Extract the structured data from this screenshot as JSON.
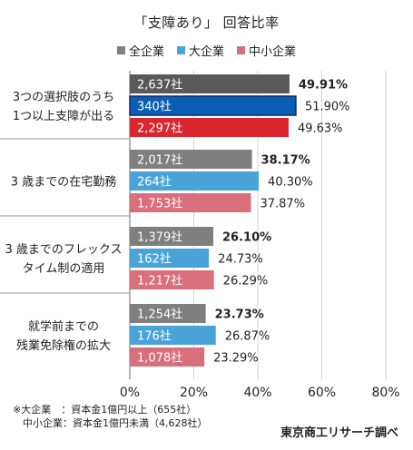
{
  "chart_data": {
    "type": "bar",
    "orientation": "horizontal",
    "title": "「支障あり」 回答比率",
    "categories": [
      [
        "3つの選択肢のうち",
        "1つ以上支障が出る"
      ],
      [
        "3 歳までの在宅勤務"
      ],
      [
        "3 歳までのフレックス",
        "タイム制の適用"
      ],
      [
        "就学前までの",
        "残業免除権の拡大"
      ]
    ],
    "series": [
      {
        "name": "全企業",
        "color": "#7f7f7f",
        "values": [
          49.91,
          38.17,
          26.1,
          23.73
        ],
        "value_labels": [
          "49.91%",
          "38.17%",
          "26.10%",
          "23.73%"
        ],
        "count_labels": [
          "2,637社",
          "2,017社",
          "1,379社",
          "1,254社"
        ]
      },
      {
        "name": "大企業",
        "color": "#4aa3d8",
        "values": [
          51.9,
          40.3,
          24.73,
          26.87
        ],
        "value_labels": [
          "51.90%",
          "40.30%",
          "24.73%",
          "26.87%"
        ],
        "count_labels": [
          "340社",
          "264社",
          "162社",
          "176社"
        ]
      },
      {
        "name": "中小企業",
        "color": "#d96f7a",
        "values": [
          49.63,
          37.87,
          26.29,
          23.29
        ],
        "value_labels": [
          "49.63%",
          "37.87%",
          "26.29%",
          "23.29%"
        ],
        "count_labels": [
          "2,297社",
          "1,753社",
          "1,217社",
          "1,078社"
        ]
      }
    ],
    "group0_colors": [
      "#595959",
      "#0a5fb4",
      "#d9262f"
    ],
    "xlim": [
      0,
      80
    ],
    "xticks": [
      "0%",
      "20%",
      "40%",
      "60%",
      "80%"
    ],
    "legend_position": "top"
  },
  "footnote": {
    "line1": "※大企業　：資本金1億円以上（655社）",
    "line2": "　中小企業：資本金1億円未満（4,628社）"
  },
  "source": "東京商工リサーチ調べ"
}
